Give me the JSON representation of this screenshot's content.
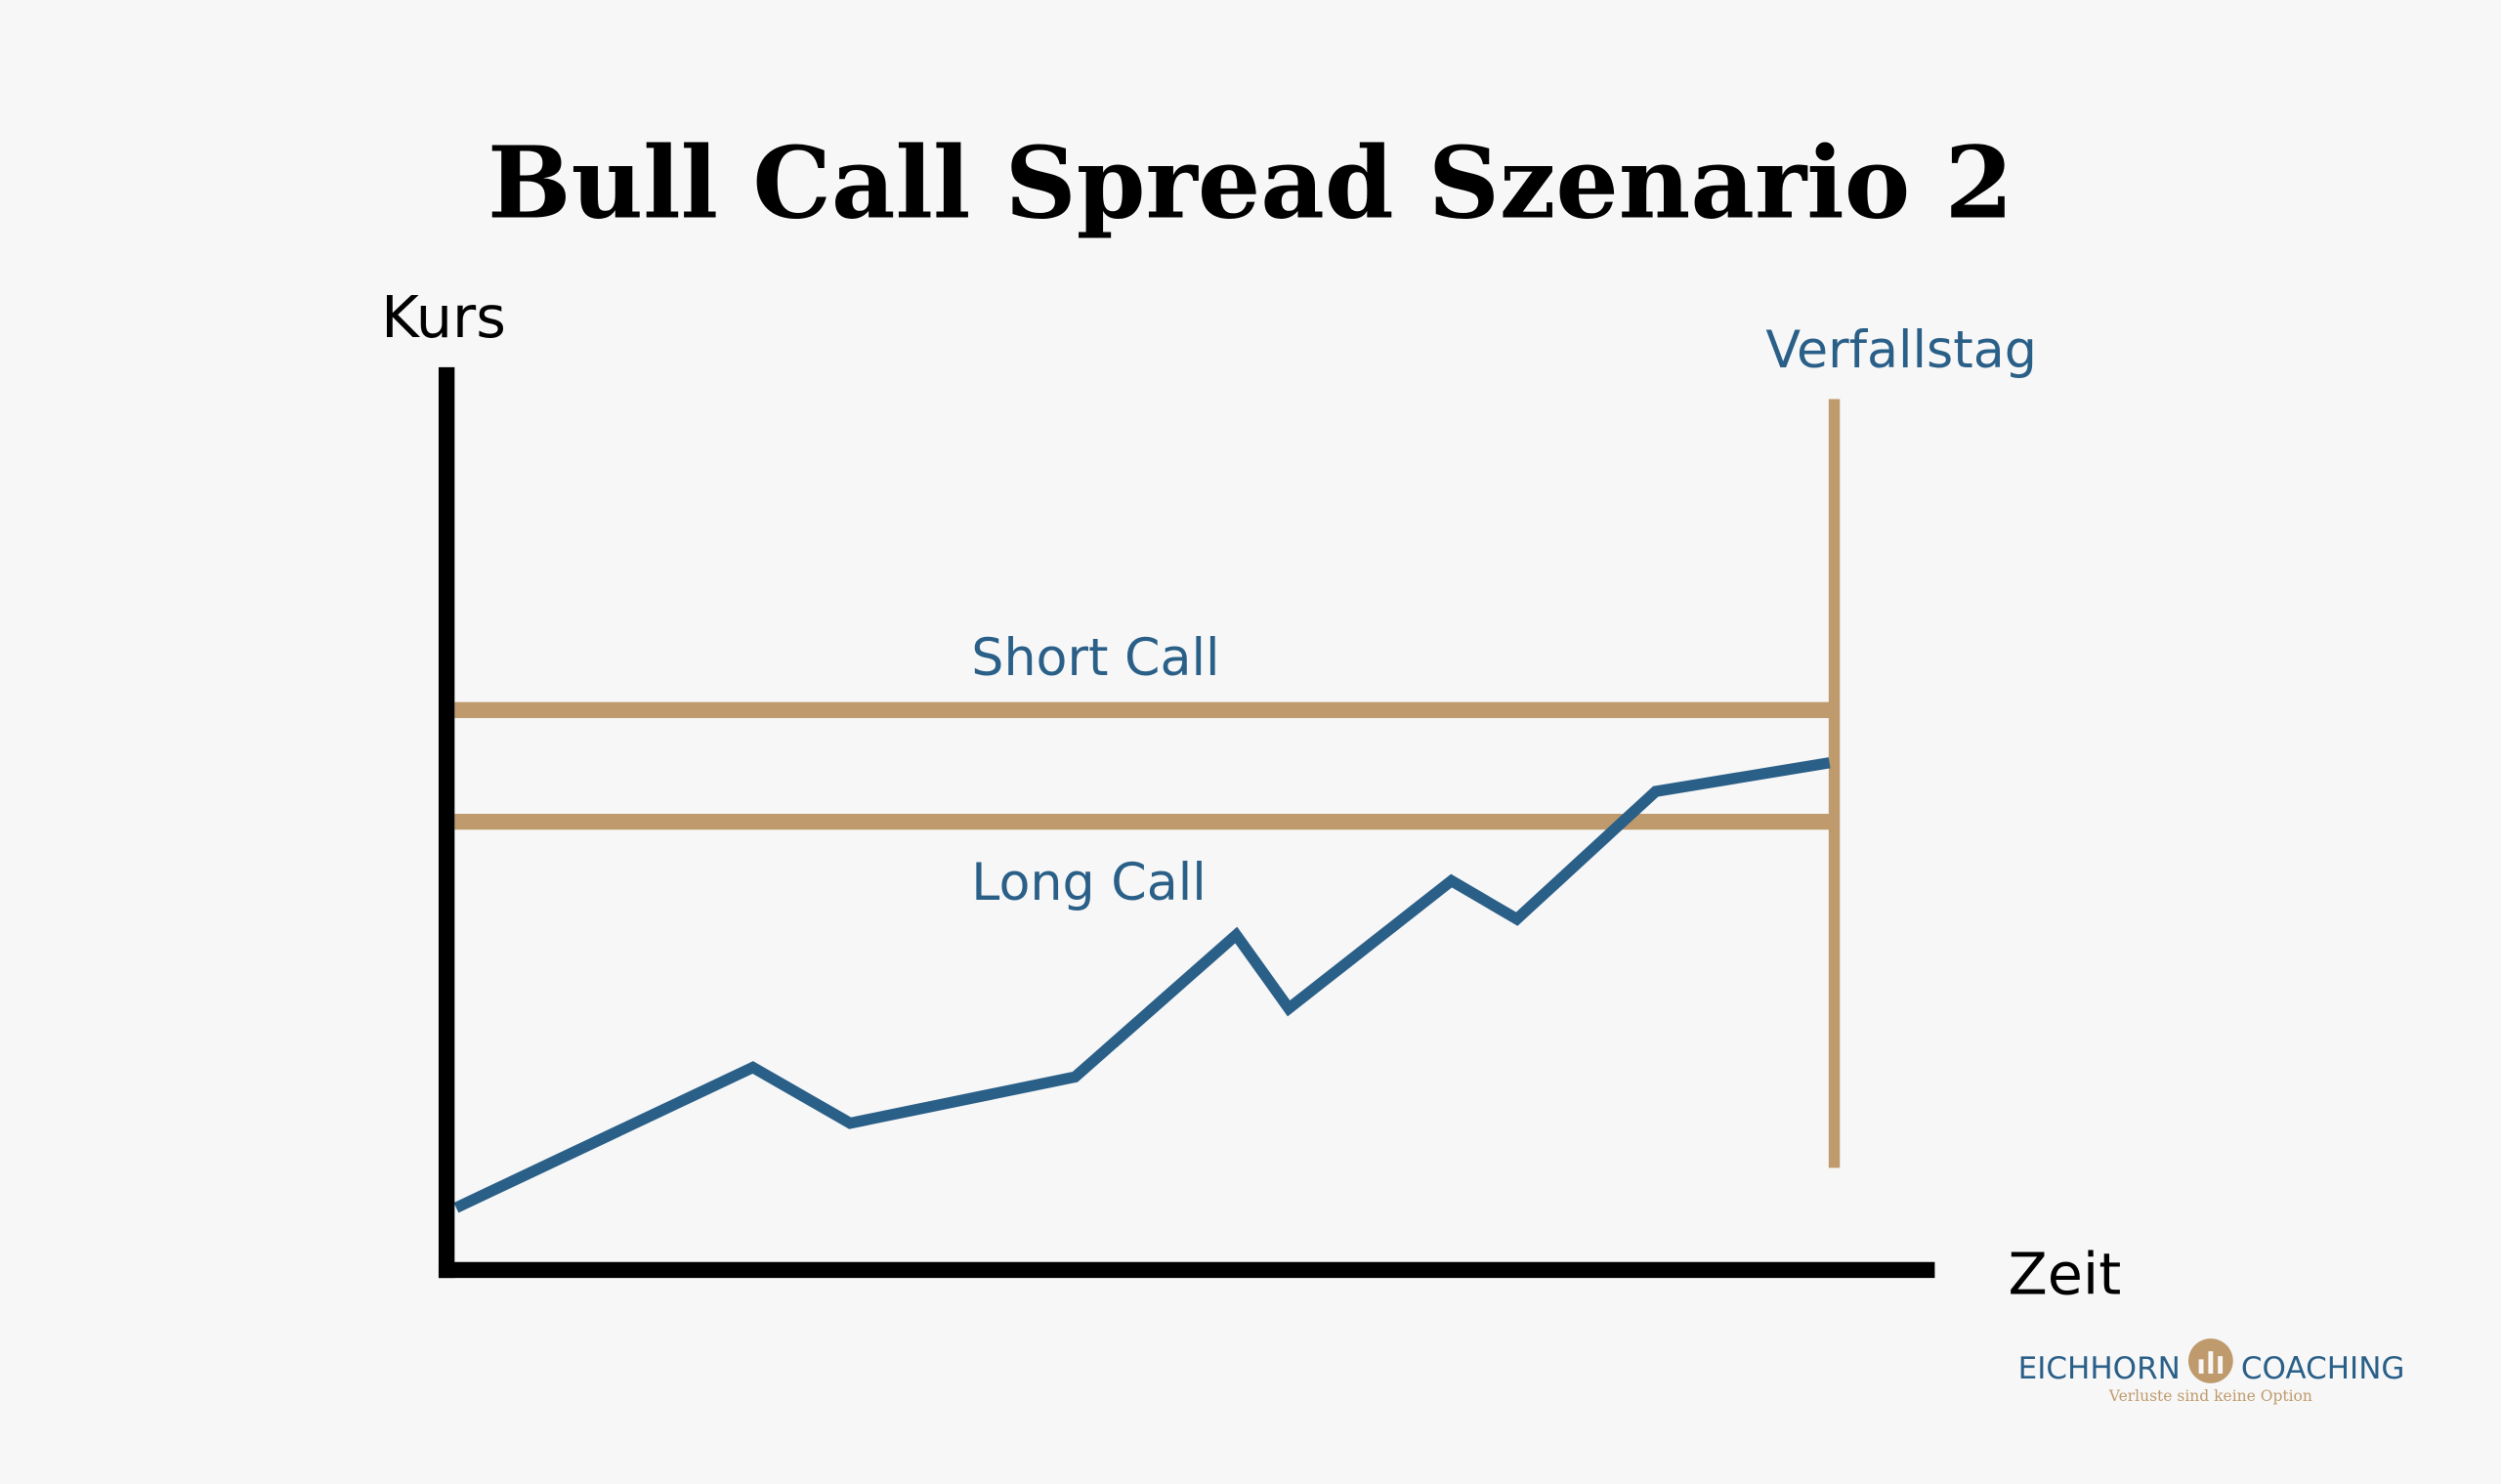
{
  "title": "Bull Call Spread Szenario 2",
  "axes": {
    "y_label": "Kurs",
    "x_label": "Zeit"
  },
  "labels": {
    "expiry": "Verfallstag",
    "short_call": "Short Call",
    "long_call": "Long Call"
  },
  "logo": {
    "left": "EICHHORN",
    "right": "COACHING",
    "tagline": "Verluste sind keine Option"
  }
}
